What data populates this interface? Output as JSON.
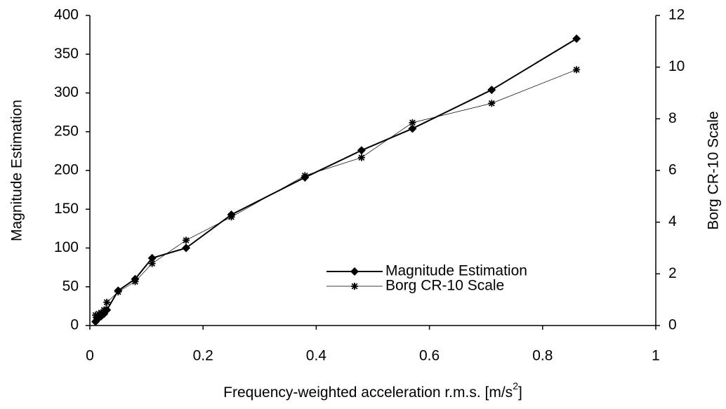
{
  "chart_data": {
    "type": "line",
    "x_label": {
      "text": "Frequency-weighted acceleration r.m.s. [m/s",
      "superscript": "2",
      "end": "]"
    },
    "y_label": "Magnitude Estimation",
    "y2_label": "Borg CR-10 Scale",
    "x": [
      0.01,
      0.013,
      0.016,
      0.02,
      0.025,
      0.03,
      0.05,
      0.08,
      0.11,
      0.17,
      0.25,
      0.38,
      0.48,
      0.57,
      0.71,
      0.86
    ],
    "series": [
      {
        "name": "Magnitude Estimation",
        "color": "#000000",
        "marker": "diamond",
        "line_width": 2,
        "values": [
          5,
          8,
          10,
          12,
          15,
          20,
          45,
          60,
          87,
          100,
          143,
          191,
          226,
          254,
          304,
          370
        ]
      },
      {
        "name": "Borg CR-10 Scale",
        "color": "#000000",
        "marker": "asterisk",
        "line_width": 0.7,
        "axis": "y2",
        "values": [
          0.4,
          0.3,
          0.45,
          0.5,
          0.6,
          0.9,
          1.3,
          1.7,
          2.4,
          3.3,
          4.2,
          5.8,
          6.5,
          7.85,
          8.6,
          9.9
        ]
      }
    ],
    "xlim": [
      0,
      1
    ],
    "xticks": [
      0,
      0.2,
      0.4,
      0.6,
      0.8,
      1
    ],
    "ylim": [
      0,
      400
    ],
    "yticks": [
      0,
      50,
      100,
      150,
      200,
      250,
      300,
      350,
      400
    ],
    "y2lim": [
      0,
      12
    ],
    "y2ticks": [
      0,
      2,
      4,
      6,
      8,
      10,
      12
    ],
    "legend": "lower right"
  }
}
